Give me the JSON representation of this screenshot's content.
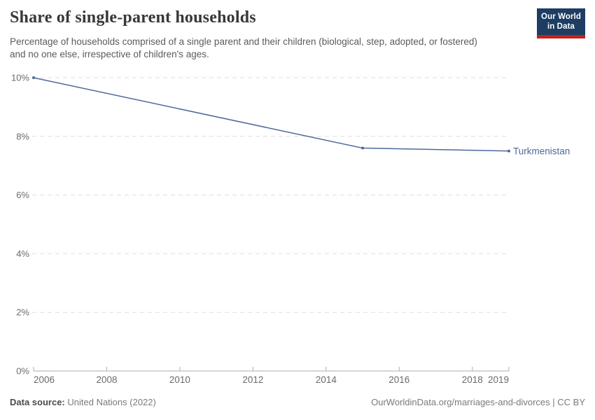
{
  "header": {
    "title": "Share of single-parent households",
    "subtitle": "Percentage of households comprised of a single parent and their children (biological, step, adopted, or fostered) and no one else, irrespective of children's ages.",
    "logo_line1": "Our World",
    "logo_line2": "in Data"
  },
  "colors": {
    "line": "#4C6A9C",
    "series_label": "#4C6A9C",
    "grid": "#dedede",
    "axis": "#aeaeae",
    "tick_text": "#6b6b6b",
    "logo_bg": "#1d3d63",
    "logo_red": "#c4201a",
    "title_text": "#383838",
    "subtitle_text": "#5b5b5b"
  },
  "chart_data": {
    "type": "line",
    "title": "Share of single-parent households",
    "xlabel": "",
    "ylabel": "",
    "xlim": [
      2006,
      2019
    ],
    "ylim": [
      0,
      10
    ],
    "grid": "horizontal-dashed",
    "legend_position": "end-of-line-label",
    "x_ticks": [
      2006,
      2008,
      2010,
      2012,
      2014,
      2016,
      2018,
      2019
    ],
    "y_ticks": [
      {
        "value": 0,
        "label": "0%"
      },
      {
        "value": 2,
        "label": "2%"
      },
      {
        "value": 4,
        "label": "4%"
      },
      {
        "value": 6,
        "label": "6%"
      },
      {
        "value": 8,
        "label": "8%"
      },
      {
        "value": 10,
        "label": "10%"
      }
    ],
    "series": [
      {
        "name": "Turkmenistan",
        "points": [
          {
            "x": 2006,
            "y": 10.0
          },
          {
            "x": 2015,
            "y": 7.6
          },
          {
            "x": 2019,
            "y": 7.5
          }
        ]
      }
    ]
  },
  "footer": {
    "source_label": "Data source:",
    "source_value": "United Nations (2022)",
    "right_text": "OurWorldinData.org/marriages-and-divorces | CC BY"
  }
}
